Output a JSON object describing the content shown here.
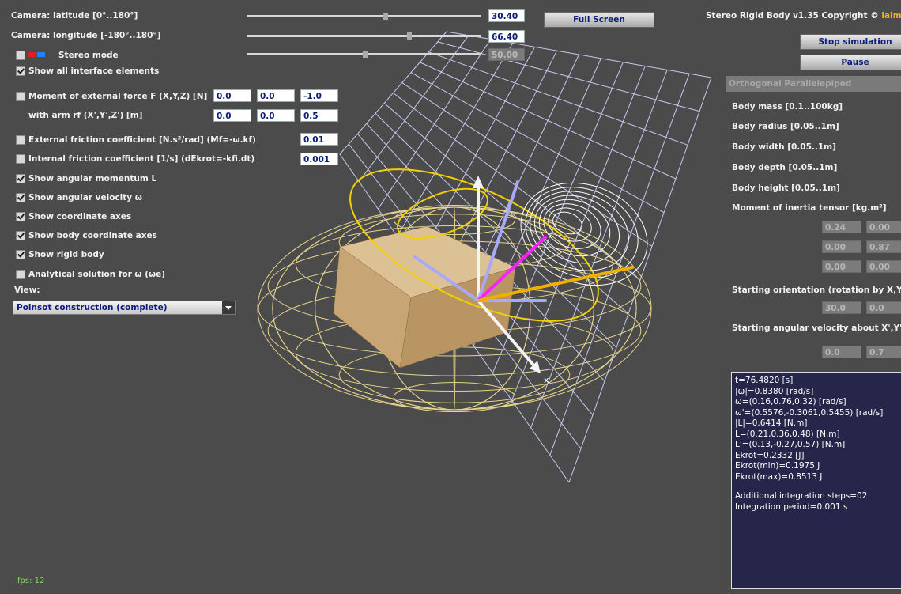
{
  "left_panel": {
    "camera_latitude": {
      "label": "Camera: latitude [0°..180°]",
      "value": "30.40"
    },
    "camera_longitude": {
      "label": "Camera: longitude [-180°..180°]",
      "value": "66.40"
    },
    "stereo_mode": {
      "label": "Stereo mode",
      "value": "50.00"
    },
    "show_all": "Show all interface elements",
    "moment": {
      "label": "Moment of external force F (X,Y,Z) [N]",
      "values": [
        "0.0",
        "0.0",
        "-1.0"
      ]
    },
    "arm": {
      "label": "with arm rf (X',Y',Z') [m]",
      "values": [
        "0.0",
        "0.0",
        "0.5"
      ]
    },
    "external_friction": {
      "label": "External friction coefficient [N.s²/rad] (Mf=-ω.kf)",
      "value": "0.01"
    },
    "internal_friction": {
      "label": "Internal friction coefficient [1/s] (dEkrot=-kfi.dt)",
      "value": "0.001"
    },
    "checkboxes": [
      "Show angular momentum L",
      "Show angular velocity ω",
      "Show coordinate axes",
      "Show body coordinate axes",
      "Show rigid body",
      "Analytical solution for ω (ωe)"
    ],
    "view_label": "View:",
    "view_select": "Poinsot construction (complete)",
    "fps": "fps: 12"
  },
  "full_screen": "Full Screen",
  "right_panel": {
    "title": "Stereo Rigid Body v1.35 Copyright ©",
    "author": "ialms",
    "buttons": [
      "Stop simulation",
      "Pause"
    ],
    "body_select": "Orthogonal Parallelepiped",
    "params": [
      "Body mass [0.1..100kg]",
      "Body radius [0.05..1m]",
      "Body width [0.05..1m]",
      "Body depth [0.05..1m]",
      "Body height [0.05..1m]",
      "Moment of inertia tensor [kg.m²]"
    ],
    "tensor": [
      [
        "0.24",
        "0.00"
      ],
      [
        "0.00",
        "0.87"
      ],
      [
        "0.00",
        "0.00"
      ]
    ],
    "orientation": {
      "label": "Starting orientation (rotation by X,Y",
      "values": [
        "30.0",
        "0.0"
      ]
    },
    "angular_velocity": {
      "label": "Starting angular velocity about X',Y',",
      "values": [
        "0.0",
        "0.7"
      ]
    }
  },
  "info": {
    "state_lines": [
      "t=76.4820 [s]",
      "|ω|=0.8380 [rad/s]",
      "ω=(0.16,0.76,0.32) [rad/s]",
      "ω'=(0.5576,-0.3061,0.5455) [rad/s]",
      "|L|=0.6414 [N.m]",
      "L=(0.21,0.36,0.48) [N.m]",
      "L'=(0.13,-0.27,0.57) [N.m]",
      "Ekrot=0.2332 [J]",
      "Ekrot(min)=0.1975 J",
      "Ekrot(max)=0.8513 J"
    ],
    "integration_lines": [
      "Additional integration steps=02",
      "Integration period=0.001 s"
    ]
  },
  "scene": {
    "axis_label": "x"
  }
}
